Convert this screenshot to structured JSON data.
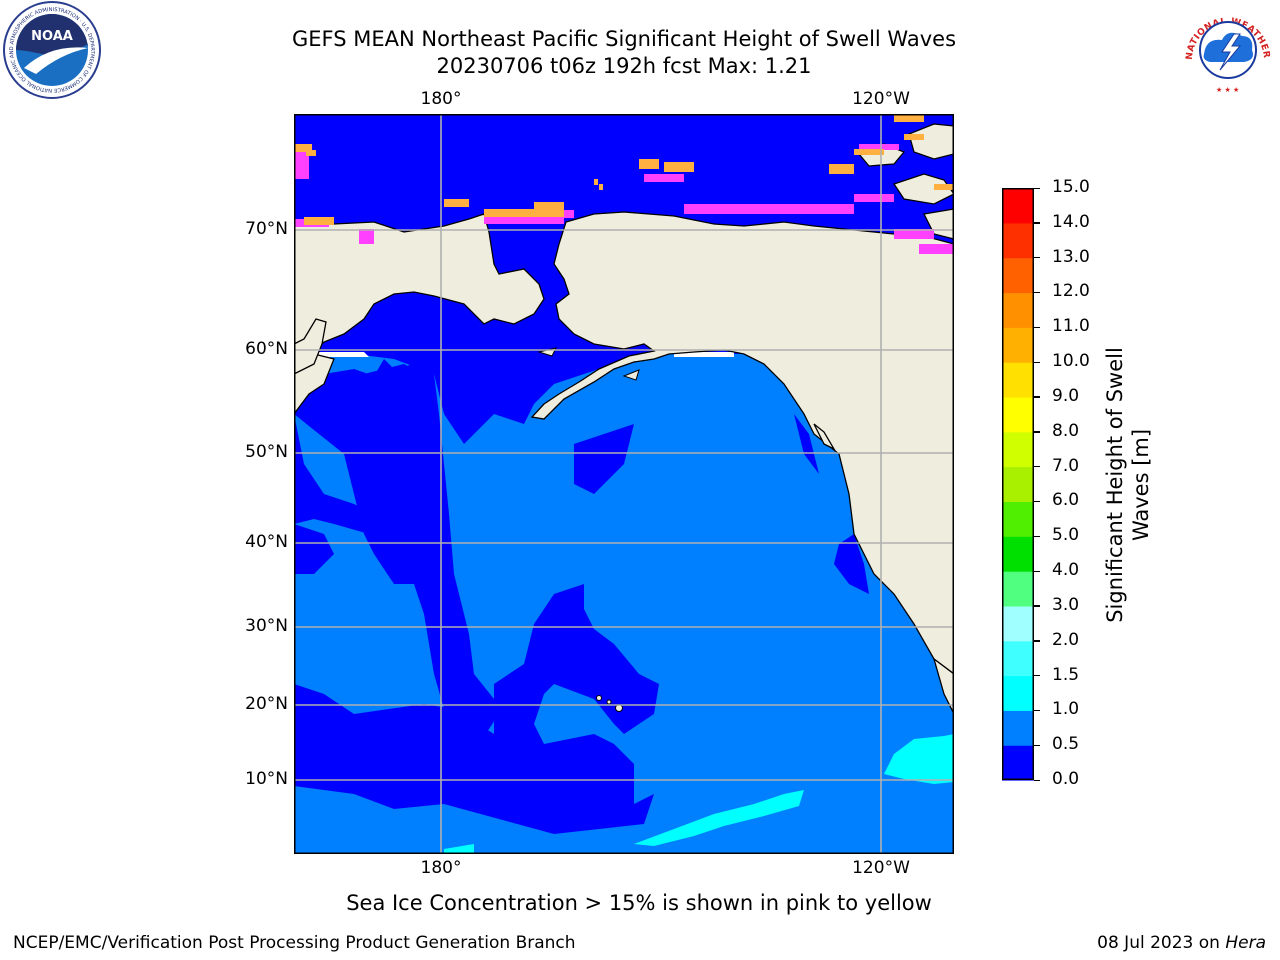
{
  "header": {
    "title_line1": "GEFS MEAN Northeast Pacific Significant Height of Swell Waves",
    "title_line2": "20230706 t06z 192h fcst   Max: 1.21"
  },
  "map": {
    "top_lon_labels": [
      "180°",
      "120°W"
    ],
    "bottom_lon_labels": [
      "180°",
      "120°W"
    ],
    "lat_labels": [
      "70°N",
      "60°N",
      "50°N",
      "40°N",
      "30°N",
      "20°N",
      "10°N"
    ],
    "colors": {
      "ocean_0_0.5": "#0000ff",
      "ocean_0.5_1.0": "#0080ff",
      "swell_1.0_1.5": "#00ffff",
      "land": "#efedde",
      "sea_ice_pink": "#ff40ff",
      "sea_ice_orange": "#ffb040",
      "grid": "#b0b0b0"
    }
  },
  "colorbar": {
    "title_line1": "Significant Height of Swell",
    "title_line2": "Waves [m]",
    "tick_labels": [
      "0.0",
      "0.5",
      "1.0",
      "1.5",
      "2.0",
      "3.0",
      "4.0",
      "5.0",
      "6.0",
      "7.0",
      "8.0",
      "9.0",
      "10.0",
      "11.0",
      "12.0",
      "13.0",
      "14.0",
      "15.0"
    ],
    "colors": [
      "#0000ff",
      "#0080ff",
      "#00ffff",
      "#40ffff",
      "#a0ffff",
      "#50ff80",
      "#00e000",
      "#50ee00",
      "#a8f000",
      "#d0ff00",
      "#ffff00",
      "#ffe000",
      "#ffb000",
      "#ff9000",
      "#ff6000",
      "#ff3000",
      "#ff0000"
    ]
  },
  "caption": "Sea Ice Concentration > 15% is shown in pink to yellow",
  "footer": {
    "left": "NCEP/EMC/Verification Post Processing Product Generation Branch",
    "right_prefix": "08 Jul 2023 on ",
    "right_host": "Hera"
  },
  "logos": {
    "noaa_text": "NOAA",
    "noaa_ring_text": "NATIONAL OCEANIC AND ATMOSPHERIC ADMINISTRATION · U.S. DEPARTMENT OF COMMERCE",
    "nws_ring_text": "NATIONAL WEATHER SERVICE"
  }
}
